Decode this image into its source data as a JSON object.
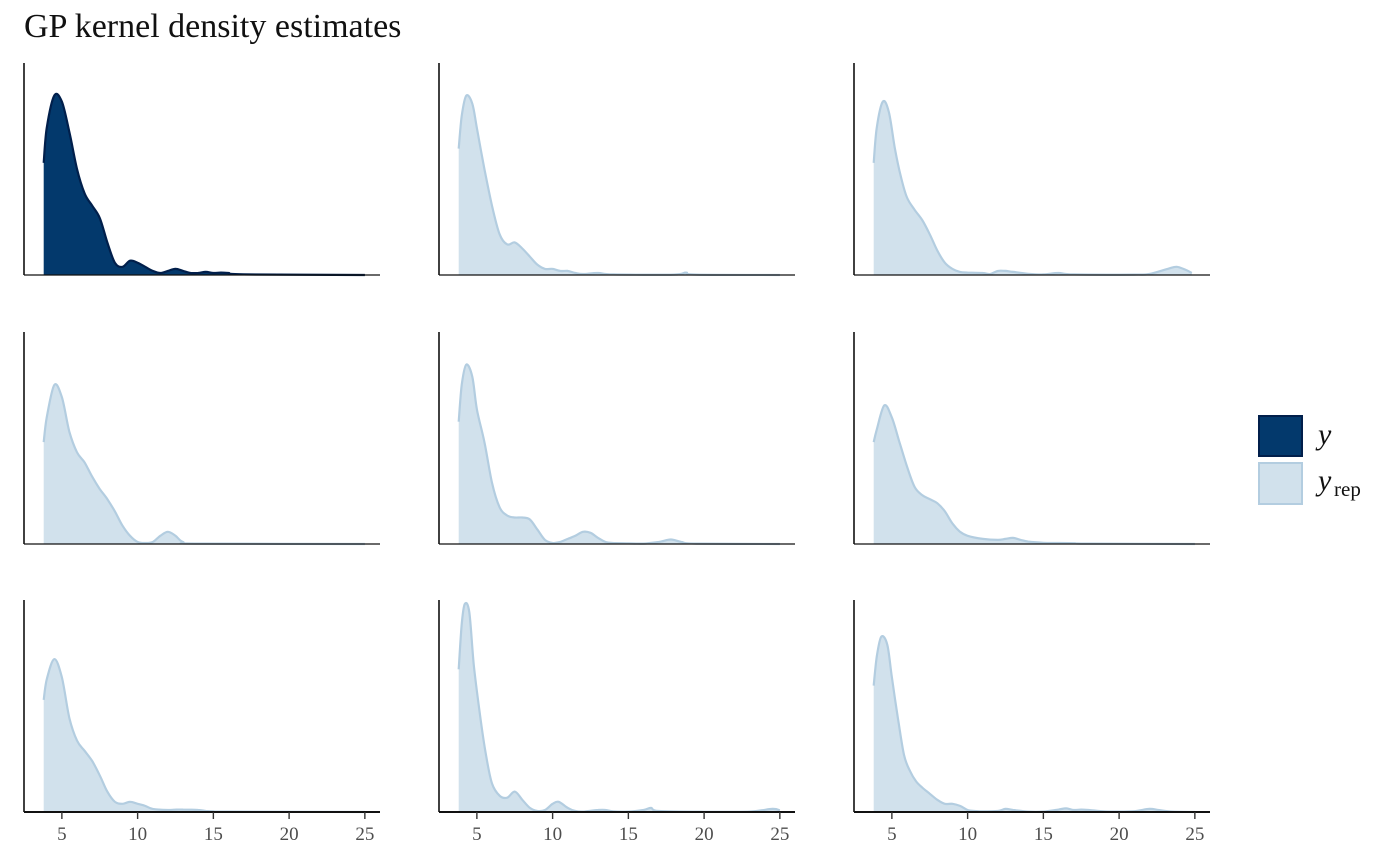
{
  "title": "GP kernel density estimates",
  "colors": {
    "y": "#03396c",
    "y_stroke": "#011f4b",
    "yrep_fill": "#d1e1ec",
    "yrep_stroke": "#b3cde0",
    "axis": "#111111",
    "tick_text": "#4d4d4d"
  },
  "legend": {
    "y_label": "y",
    "yrep_label": "y",
    "yrep_sub": "rep",
    "placement": "right"
  },
  "chart_data": {
    "type": "area",
    "layout": {
      "rows": 3,
      "cols": 3
    },
    "title": "GP kernel density estimates",
    "xlabel": "",
    "ylabel": "",
    "xlim": [
      2.5,
      26
    ],
    "ylim": [
      0,
      1.03
    ],
    "xticks": [
      5,
      10,
      15,
      20,
      25
    ],
    "xtick_labels": [
      "5",
      "10",
      "15",
      "20",
      "25"
    ],
    "x_start": 3.8,
    "panels": [
      {
        "series": "y",
        "x_end": 25,
        "points": [
          [
            3.8,
            0.55
          ],
          [
            4,
            0.72
          ],
          [
            4.5,
            0.88
          ],
          [
            5,
            0.85
          ],
          [
            5.5,
            0.7
          ],
          [
            6,
            0.52
          ],
          [
            6.5,
            0.4
          ],
          [
            7,
            0.34
          ],
          [
            7.5,
            0.28
          ],
          [
            8,
            0.16
          ],
          [
            8.5,
            0.06
          ],
          [
            9,
            0.04
          ],
          [
            9.5,
            0.07
          ],
          [
            10,
            0.06
          ],
          [
            10.5,
            0.04
          ],
          [
            11,
            0.02
          ],
          [
            11.5,
            0.01
          ],
          [
            12,
            0.02
          ],
          [
            12.5,
            0.03
          ],
          [
            13,
            0.02
          ],
          [
            13.5,
            0.01
          ],
          [
            14,
            0.01
          ],
          [
            14.5,
            0.015
          ],
          [
            15,
            0.01
          ],
          [
            15.5,
            0.012
          ],
          [
            16,
            0.01
          ],
          [
            17,
            0.003
          ],
          [
            25,
            0
          ]
        ]
      },
      {
        "series": "yrep",
        "x_end": 25,
        "points": [
          [
            3.8,
            0.62
          ],
          [
            4,
            0.78
          ],
          [
            4.3,
            0.88
          ],
          [
            4.7,
            0.84
          ],
          [
            5,
            0.72
          ],
          [
            5.5,
            0.52
          ],
          [
            6,
            0.34
          ],
          [
            6.5,
            0.2
          ],
          [
            7,
            0.15
          ],
          [
            7.5,
            0.16
          ],
          [
            8,
            0.13
          ],
          [
            8.5,
            0.09
          ],
          [
            9,
            0.05
          ],
          [
            9.5,
            0.03
          ],
          [
            10,
            0.03
          ],
          [
            10.5,
            0.02
          ],
          [
            11,
            0.02
          ],
          [
            11.5,
            0.01
          ],
          [
            12,
            0.005
          ],
          [
            13,
            0.01
          ],
          [
            14,
            0.003
          ],
          [
            18,
            0.002
          ],
          [
            18.8,
            0.012
          ],
          [
            19.5,
            0.002
          ],
          [
            25,
            0
          ]
        ]
      },
      {
        "series": "yrep",
        "x_end": 25,
        "points": [
          [
            3.8,
            0.55
          ],
          [
            4,
            0.72
          ],
          [
            4.4,
            0.85
          ],
          [
            4.8,
            0.8
          ],
          [
            5.2,
            0.62
          ],
          [
            5.6,
            0.48
          ],
          [
            6,
            0.38
          ],
          [
            6.5,
            0.32
          ],
          [
            7,
            0.27
          ],
          [
            7.5,
            0.2
          ],
          [
            8,
            0.12
          ],
          [
            8.5,
            0.06
          ],
          [
            9,
            0.03
          ],
          [
            9.5,
            0.015
          ],
          [
            10,
            0.012
          ],
          [
            11,
            0.01
          ],
          [
            11.5,
            0.005
          ],
          [
            12,
            0.02
          ],
          [
            12.5,
            0.02
          ],
          [
            13,
            0.015
          ],
          [
            14,
            0.006
          ],
          [
            15,
            0.003
          ],
          [
            16,
            0.01
          ],
          [
            17,
            0.003
          ],
          [
            21,
            0.002
          ],
          [
            22,
            0.005
          ],
          [
            23.2,
            0.03
          ],
          [
            23.8,
            0.04
          ],
          [
            24.4,
            0.025
          ],
          [
            24.8,
            0.01
          ]
        ]
      },
      {
        "series": "yrep",
        "x_end": 25,
        "points": [
          [
            3.8,
            0.5
          ],
          [
            4,
            0.62
          ],
          [
            4.5,
            0.78
          ],
          [
            5,
            0.72
          ],
          [
            5.5,
            0.55
          ],
          [
            6,
            0.45
          ],
          [
            6.5,
            0.4
          ],
          [
            7,
            0.33
          ],
          [
            7.5,
            0.27
          ],
          [
            8,
            0.22
          ],
          [
            8.5,
            0.16
          ],
          [
            9,
            0.09
          ],
          [
            9.5,
            0.04
          ],
          [
            10,
            0.01
          ],
          [
            10.5,
            0.005
          ],
          [
            11,
            0.01
          ],
          [
            11.5,
            0.04
          ],
          [
            12,
            0.06
          ],
          [
            12.5,
            0.04
          ],
          [
            13,
            0.01
          ],
          [
            14,
            0.002
          ],
          [
            25,
            0
          ]
        ]
      },
      {
        "series": "yrep",
        "x_end": 25,
        "points": [
          [
            3.8,
            0.6
          ],
          [
            4,
            0.78
          ],
          [
            4.3,
            0.88
          ],
          [
            4.7,
            0.82
          ],
          [
            5,
            0.66
          ],
          [
            5.5,
            0.5
          ],
          [
            6,
            0.3
          ],
          [
            6.5,
            0.18
          ],
          [
            7,
            0.14
          ],
          [
            7.5,
            0.13
          ],
          [
            8,
            0.13
          ],
          [
            8.5,
            0.12
          ],
          [
            9,
            0.07
          ],
          [
            9.5,
            0.02
          ],
          [
            10,
            0.005
          ],
          [
            10.5,
            0.01
          ],
          [
            11,
            0.025
          ],
          [
            11.5,
            0.04
          ],
          [
            12,
            0.06
          ],
          [
            12.5,
            0.055
          ],
          [
            13,
            0.03
          ],
          [
            13.5,
            0.01
          ],
          [
            14,
            0.005
          ],
          [
            15,
            0.003
          ],
          [
            16,
            0.002
          ],
          [
            17,
            0.01
          ],
          [
            17.8,
            0.022
          ],
          [
            18.5,
            0.01
          ],
          [
            19.5,
            0.002
          ],
          [
            25,
            0
          ]
        ]
      },
      {
        "series": "yrep",
        "x_end": 25,
        "points": [
          [
            3.8,
            0.5
          ],
          [
            4,
            0.56
          ],
          [
            4.5,
            0.68
          ],
          [
            5,
            0.62
          ],
          [
            5.5,
            0.5
          ],
          [
            6,
            0.38
          ],
          [
            6.5,
            0.28
          ],
          [
            7,
            0.24
          ],
          [
            7.5,
            0.22
          ],
          [
            8,
            0.2
          ],
          [
            8.5,
            0.16
          ],
          [
            9,
            0.1
          ],
          [
            9.5,
            0.06
          ],
          [
            10,
            0.04
          ],
          [
            11,
            0.025
          ],
          [
            12,
            0.02
          ],
          [
            12.5,
            0.025
          ],
          [
            13,
            0.03
          ],
          [
            13.5,
            0.02
          ],
          [
            14,
            0.012
          ],
          [
            15,
            0.006
          ],
          [
            16,
            0.005
          ],
          [
            17,
            0.004
          ],
          [
            18,
            0.002
          ],
          [
            25,
            0
          ]
        ]
      },
      {
        "series": "yrep",
        "x_end": 25,
        "points": [
          [
            3.8,
            0.55
          ],
          [
            4,
            0.65
          ],
          [
            4.5,
            0.75
          ],
          [
            5,
            0.66
          ],
          [
            5.5,
            0.46
          ],
          [
            6,
            0.35
          ],
          [
            6.5,
            0.3
          ],
          [
            7,
            0.25
          ],
          [
            7.5,
            0.18
          ],
          [
            8,
            0.1
          ],
          [
            8.5,
            0.05
          ],
          [
            9,
            0.04
          ],
          [
            9.5,
            0.05
          ],
          [
            10,
            0.04
          ],
          [
            10.5,
            0.03
          ],
          [
            11,
            0.015
          ],
          [
            12,
            0.01
          ],
          [
            12.5,
            0.012
          ],
          [
            13,
            0.012
          ],
          [
            14,
            0.01
          ],
          [
            14.5,
            0.005
          ],
          [
            15,
            0.003
          ],
          [
            16,
            0.002
          ],
          [
            25,
            0
          ]
        ]
      },
      {
        "series": "yrep",
        "x_end": 25,
        "points": [
          [
            3.8,
            0.7
          ],
          [
            4,
            0.92
          ],
          [
            4.2,
            1.02
          ],
          [
            4.5,
            0.98
          ],
          [
            4.8,
            0.72
          ],
          [
            5.2,
            0.48
          ],
          [
            5.6,
            0.28
          ],
          [
            6,
            0.14
          ],
          [
            6.5,
            0.08
          ],
          [
            7,
            0.07
          ],
          [
            7.5,
            0.1
          ],
          [
            8,
            0.06
          ],
          [
            8.5,
            0.02
          ],
          [
            9,
            0.005
          ],
          [
            9.5,
            0.01
          ],
          [
            10,
            0.04
          ],
          [
            10.4,
            0.05
          ],
          [
            11,
            0.02
          ],
          [
            11.5,
            0.005
          ],
          [
            12,
            0.002
          ],
          [
            13,
            0.01
          ],
          [
            13.5,
            0.01
          ],
          [
            14,
            0.003
          ],
          [
            15,
            0.002
          ],
          [
            16,
            0.01
          ],
          [
            16.5,
            0.02
          ],
          [
            17,
            0.005
          ],
          [
            20,
            0.001
          ],
          [
            23,
            0.002
          ],
          [
            24.5,
            0.015
          ],
          [
            25,
            0.008
          ]
        ]
      },
      {
        "series": "yrep",
        "x_end": 25,
        "points": [
          [
            3.8,
            0.62
          ],
          [
            4,
            0.76
          ],
          [
            4.3,
            0.86
          ],
          [
            4.7,
            0.82
          ],
          [
            5,
            0.66
          ],
          [
            5.4,
            0.46
          ],
          [
            5.8,
            0.28
          ],
          [
            6.2,
            0.2
          ],
          [
            6.6,
            0.15
          ],
          [
            7,
            0.12
          ],
          [
            7.5,
            0.09
          ],
          [
            8,
            0.06
          ],
          [
            8.5,
            0.04
          ],
          [
            9,
            0.04
          ],
          [
            9.5,
            0.03
          ],
          [
            10,
            0.01
          ],
          [
            10.5,
            0.005
          ],
          [
            11,
            0.003
          ],
          [
            12,
            0.005
          ],
          [
            12.5,
            0.015
          ],
          [
            13,
            0.01
          ],
          [
            14,
            0.002
          ],
          [
            15,
            0.002
          ],
          [
            16,
            0.012
          ],
          [
            16.5,
            0.018
          ],
          [
            17,
            0.01
          ],
          [
            17.5,
            0.012
          ],
          [
            18,
            0.01
          ],
          [
            19,
            0.003
          ],
          [
            20,
            0.002
          ],
          [
            21,
            0.004
          ],
          [
            22,
            0.015
          ],
          [
            22.6,
            0.01
          ],
          [
            23.5,
            0.002
          ],
          [
            25,
            0
          ]
        ]
      }
    ]
  }
}
